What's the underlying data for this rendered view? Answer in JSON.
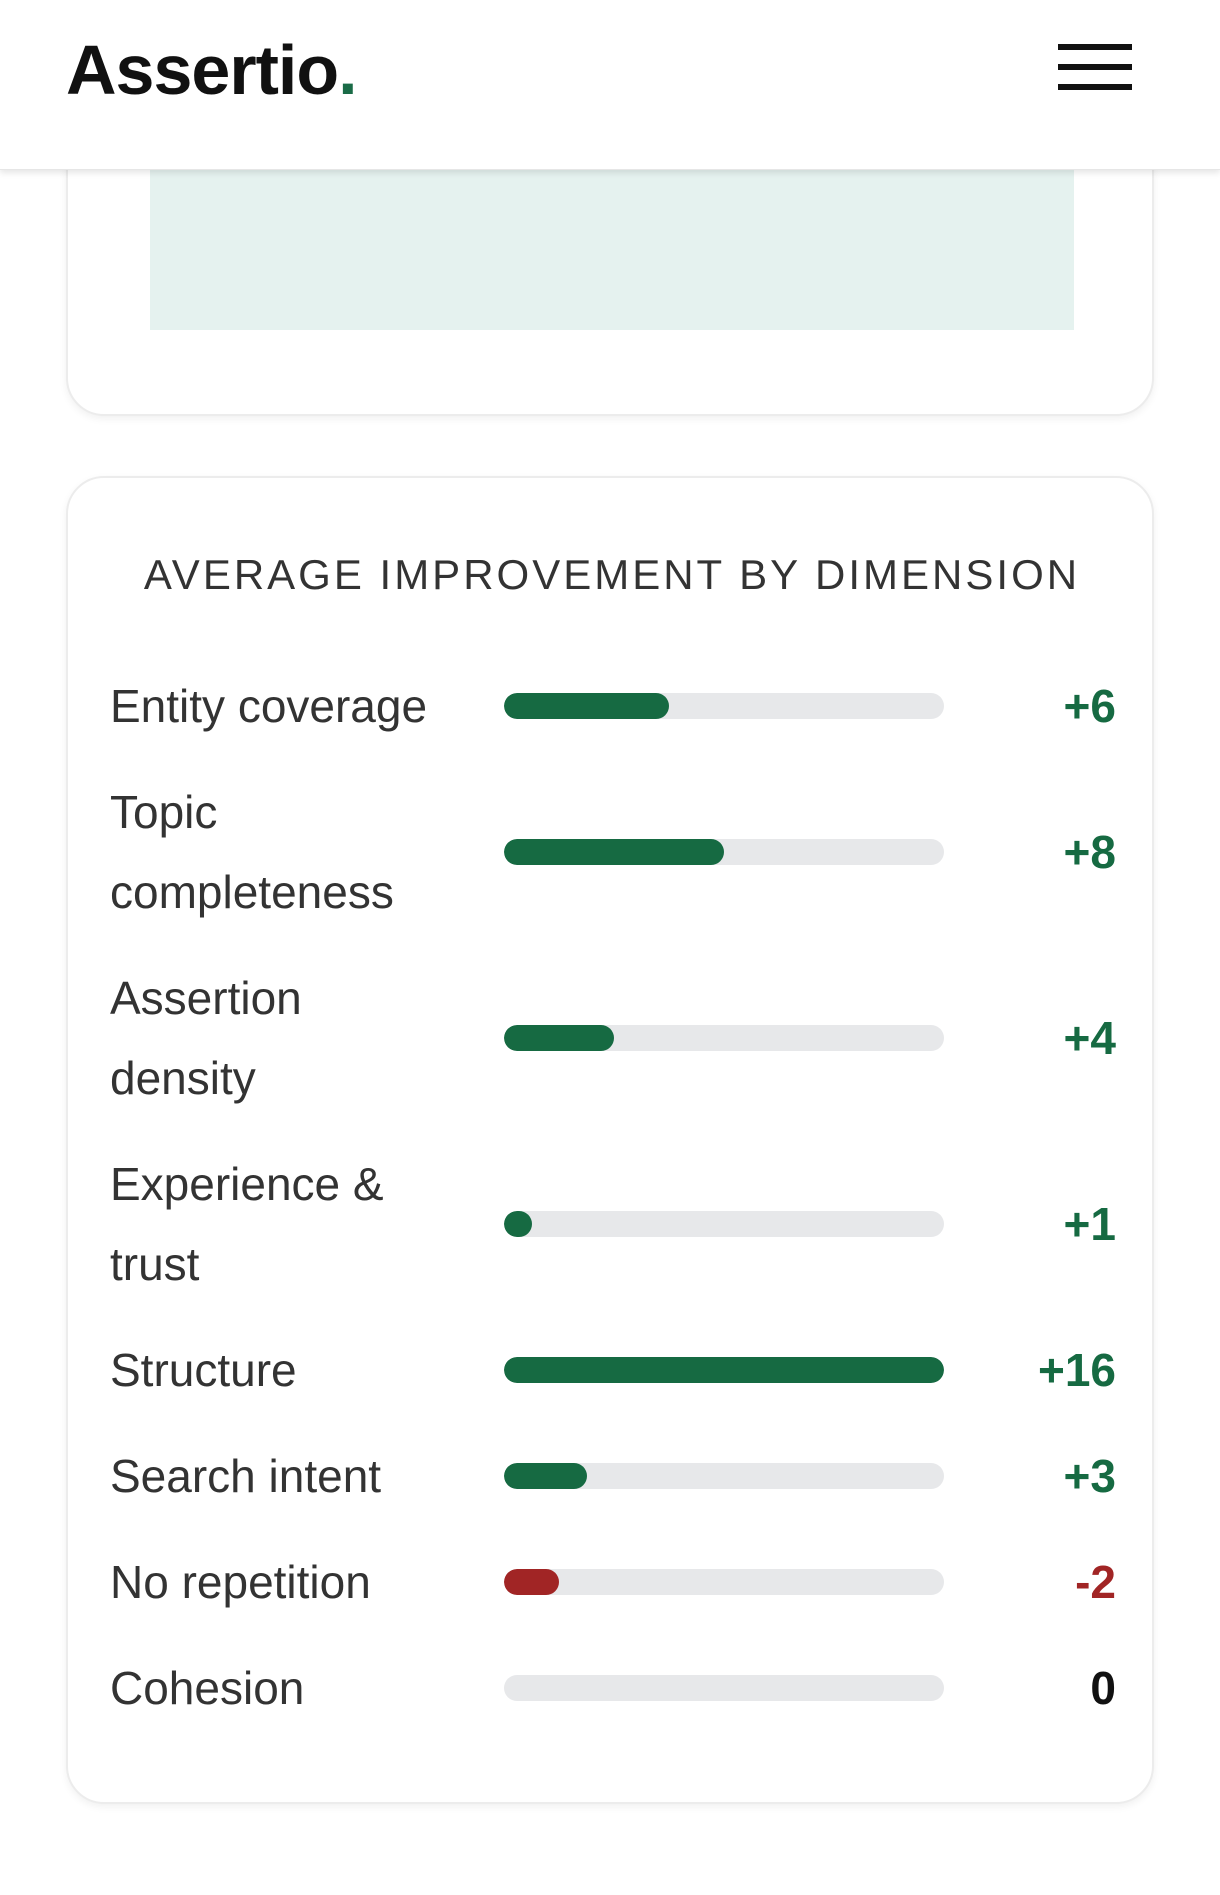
{
  "header": {
    "logo_text": "Assertio",
    "logo_dot": ".",
    "logo_dot_color": "#1a6b47",
    "menu_icon": "hamburger-menu-icon"
  },
  "dimension_card": {
    "title": "AVERAGE IMPROVEMENT BY DIMENSION",
    "scale_max": 16,
    "colors": {
      "positive": "#166a42",
      "negative": "#a12525",
      "neutral": "#111111",
      "track": "#e7e8ea"
    },
    "rows": [
      {
        "label_lines": [
          "Entity coverage"
        ],
        "value": 6,
        "value_text": "+6"
      },
      {
        "label_lines": [
          "Topic",
          "completeness"
        ],
        "value": 8,
        "value_text": "+8"
      },
      {
        "label_lines": [
          "Assertion",
          "density"
        ],
        "value": 4,
        "value_text": "+4"
      },
      {
        "label_lines": [
          "Experience &",
          "trust"
        ],
        "value": 1,
        "value_text": "+1"
      },
      {
        "label_lines": [
          "Structure"
        ],
        "value": 16,
        "value_text": "+16"
      },
      {
        "label_lines": [
          "Search intent"
        ],
        "value": 3,
        "value_text": "+3"
      },
      {
        "label_lines": [
          "No repetition"
        ],
        "value": -2,
        "value_text": "-2"
      },
      {
        "label_lines": [
          "Cohesion"
        ],
        "value": 0,
        "value_text": "0"
      }
    ]
  }
}
